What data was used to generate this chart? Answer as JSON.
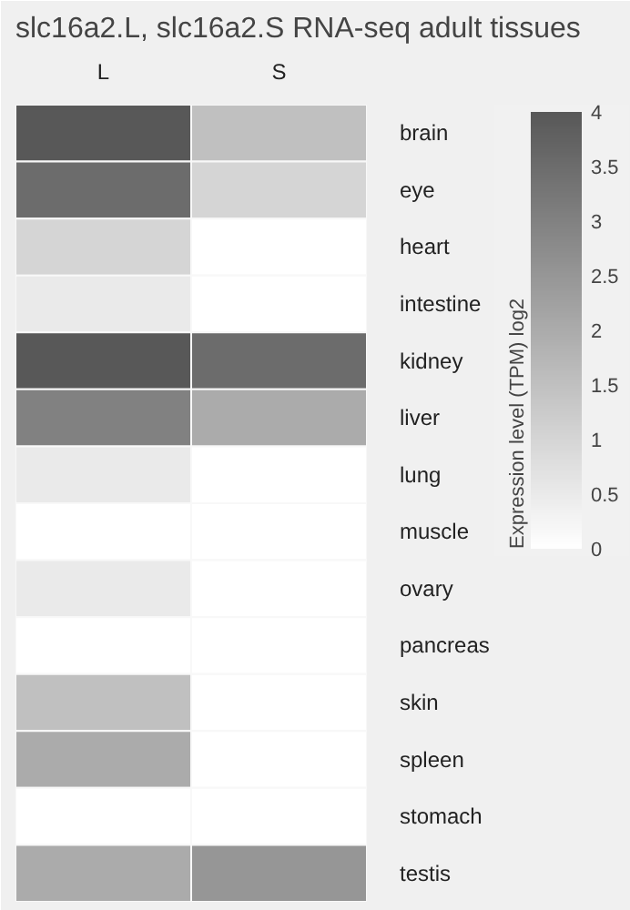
{
  "chart_data": {
    "type": "heatmap",
    "title": "slc16a2.L, slc16a2.S RNA-seq adult tissues",
    "categories": [
      "L",
      "S"
    ],
    "y_categories": [
      "brain",
      "eye",
      "heart",
      "intestine",
      "kidney",
      "liver",
      "lung",
      "muscle",
      "ovary",
      "pancreas",
      "skin",
      "spleen",
      "stomach",
      "testis"
    ],
    "cells": [
      [
        4,
        1.5
      ],
      [
        3.5,
        1
      ],
      [
        1,
        0
      ],
      [
        0.5,
        0
      ],
      [
        4,
        3.5
      ],
      [
        3,
        2
      ],
      [
        0.5,
        0
      ],
      [
        0,
        0
      ],
      [
        0.5,
        0
      ],
      [
        0,
        0
      ],
      [
        1.5,
        0
      ],
      [
        2,
        0
      ],
      [
        0,
        0
      ],
      [
        2,
        2.5
      ]
    ],
    "clabel": "Expression level (TPM) log2",
    "clim": [
      0,
      4
    ],
    "cticks": [
      0,
      0.5,
      1,
      1.5,
      2,
      2.5,
      3,
      3.5,
      4
    ]
  }
}
